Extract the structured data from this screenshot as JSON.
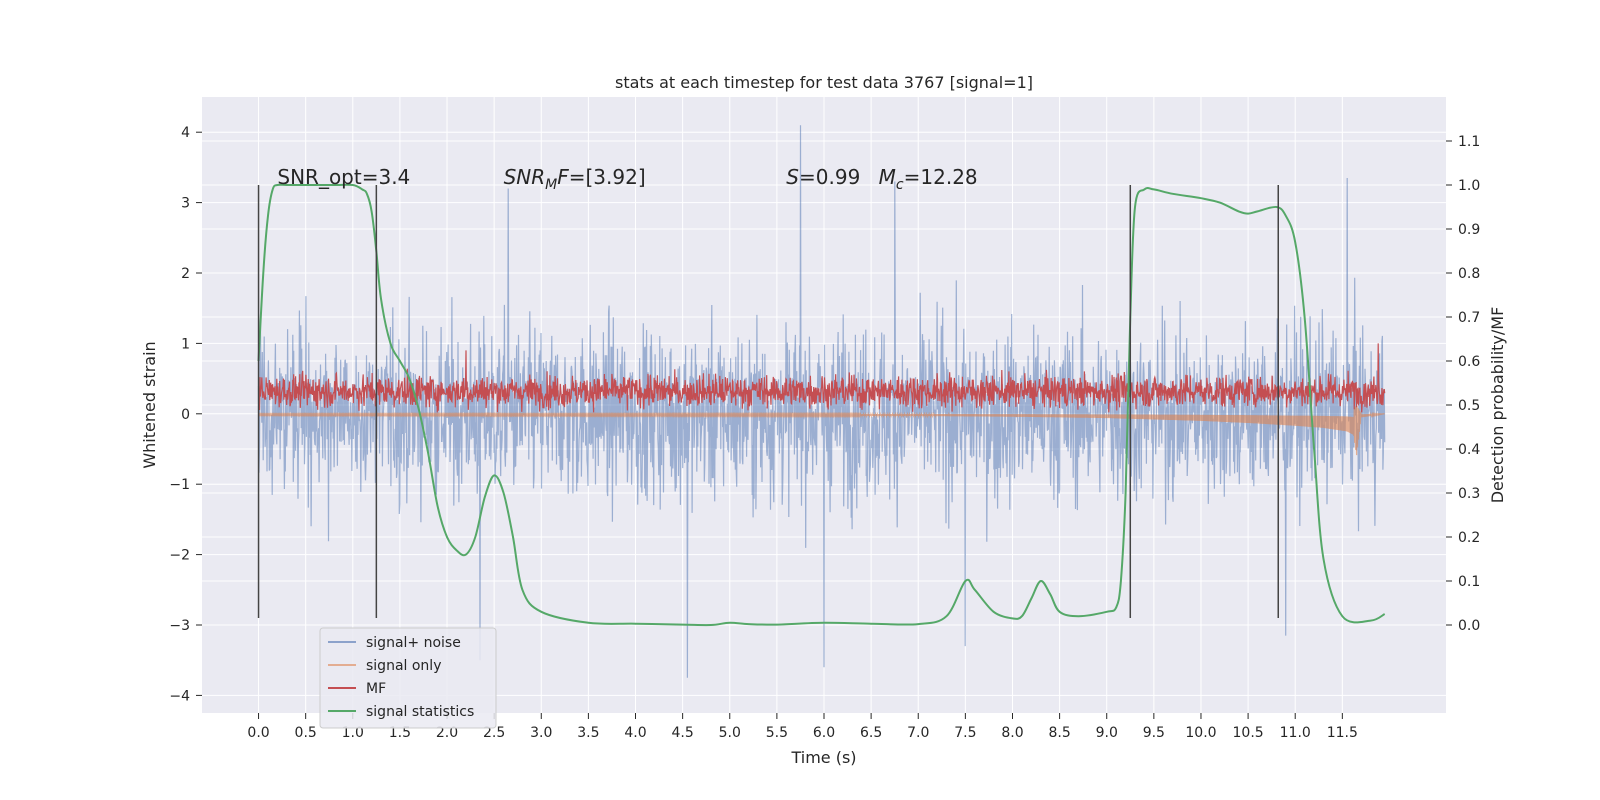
{
  "chart_data": {
    "type": "line",
    "title": "stats at each timestep for test data 3767 [signal=1]",
    "xlabel": "Time (s)",
    "ylabel": "Whitened strain",
    "y2label": "Detection probability/MF",
    "xlim": [
      -0.6,
      12.6
    ],
    "ylim": [
      -4.25,
      4.5
    ],
    "y2lim": [
      -0.2,
      1.2
    ],
    "x_ticks": [
      0.0,
      0.5,
      1.0,
      1.5,
      2.0,
      2.5,
      3.0,
      3.5,
      4.0,
      4.5,
      5.0,
      5.5,
      6.0,
      6.5,
      7.0,
      7.5,
      8.0,
      8.5,
      9.0,
      9.5,
      10.0,
      10.5,
      11.0,
      11.5
    ],
    "x_tick_labels": [
      "0.0",
      "0.5",
      "1.0",
      "1.5",
      "2.0",
      "2.5",
      "3.0",
      "3.5",
      "4.0",
      "4.5",
      "5.0",
      "5.5",
      "6.0",
      "6.5",
      "7.0",
      "7.5",
      "8.0",
      "8.5",
      "9.0",
      "9.5",
      "10.0",
      "10.5",
      "11.0",
      "11.5"
    ],
    "y_ticks": [
      4,
      3,
      2,
      1,
      0,
      -1,
      -2,
      -3,
      -4
    ],
    "y_tick_labels": [
      "4",
      "3",
      "2",
      "1",
      "0",
      "−1",
      "−2",
      "−3",
      "−4"
    ],
    "y2_ticks": [
      1.1,
      1.0,
      0.9,
      0.8,
      0.7,
      0.6,
      0.5,
      0.4,
      0.3,
      0.2,
      0.1,
      0.0
    ],
    "y2_tick_labels": [
      "1.1",
      "1.0",
      "0.9",
      "0.8",
      "0.7",
      "0.6",
      "0.5",
      "0.4",
      "0.3",
      "0.2",
      "0.1",
      "0.0"
    ],
    "grid": true,
    "legend_position": "bottom-left",
    "annotations": [
      {
        "text": "SNR_opt=3.4",
        "x": 0.2
      },
      {
        "text": "SNR_MF=[3.92]",
        "x": 2.6
      },
      {
        "text": "S=0.99   M_c=12.28",
        "x": 5.6
      }
    ],
    "vertical_lines": {
      "x": [
        0.0,
        1.25,
        9.25,
        10.82
      ],
      "y_range": [
        -2.9,
        3.25
      ]
    },
    "series": [
      {
        "name": "signal+ noise",
        "color": "#4c72b0",
        "axis": "left",
        "style": "dense noise trace, 0 to 11.95 s",
        "x_range": [
          0.0,
          11.95
        ],
        "typical_range": [
          -2.0,
          2.0
        ],
        "peaks": [
          {
            "x": 5.75,
            "y": 4.1
          },
          {
            "x": 11.55,
            "y": 3.35
          },
          {
            "x": 6.75,
            "y": 3.3
          },
          {
            "x": 2.65,
            "y": 3.2
          },
          {
            "x": 4.55,
            "y": -3.75
          },
          {
            "x": 6.0,
            "y": -3.6
          },
          {
            "x": 7.5,
            "y": -3.3
          },
          {
            "x": 2.35,
            "y": -3.5
          },
          {
            "x": 10.9,
            "y": -3.15
          }
        ]
      },
      {
        "name": "signal only",
        "color": "#dd8452",
        "axis": "left",
        "x": [
          0.0,
          7.0,
          8.0,
          9.0,
          10.0,
          10.5,
          11.0,
          11.3,
          11.55,
          11.62,
          11.65,
          11.7,
          11.95
        ],
        "envelope": [
          0.02,
          0.03,
          0.04,
          0.06,
          0.1,
          0.13,
          0.17,
          0.2,
          0.25,
          0.3,
          0.6,
          0.05,
          0.0
        ]
      },
      {
        "name": "MF",
        "color": "#c44e52",
        "axis": "left",
        "style": "noise trace",
        "x_range": [
          0.0,
          11.95
        ],
        "typical_range": [
          0.0,
          0.75
        ],
        "peaks": [
          {
            "x": 11.88,
            "y": 1.0
          },
          {
            "x": 2.2,
            "y": 0.9
          }
        ]
      },
      {
        "name": "signal statistics",
        "color": "#55a868",
        "axis": "right",
        "x": [
          0.0,
          0.05,
          0.1,
          0.15,
          0.2,
          0.3,
          0.5,
          0.8,
          1.0,
          1.1,
          1.15,
          1.2,
          1.25,
          1.3,
          1.4,
          1.5,
          1.6,
          1.7,
          1.8,
          1.9,
          2.0,
          2.1,
          2.2,
          2.3,
          2.4,
          2.5,
          2.6,
          2.7,
          2.8,
          3.0,
          3.5,
          4.0,
          4.5,
          4.8,
          5.0,
          5.2,
          5.5,
          6.0,
          6.5,
          7.0,
          7.3,
          7.5,
          7.6,
          7.8,
          8.0,
          8.1,
          8.2,
          8.3,
          8.4,
          8.5,
          8.7,
          9.0,
          9.1,
          9.15,
          9.2,
          9.25,
          9.3,
          9.4,
          9.5,
          9.7,
          10.0,
          10.2,
          10.4,
          10.5,
          10.6,
          10.8,
          10.9,
          11.0,
          11.1,
          11.2,
          11.3,
          11.5,
          11.8,
          11.95
        ],
        "y": [
          0.6,
          0.8,
          0.93,
          0.99,
          1.0,
          1.0,
          1.0,
          1.0,
          1.0,
          0.99,
          0.98,
          0.94,
          0.85,
          0.74,
          0.64,
          0.6,
          0.56,
          0.49,
          0.39,
          0.27,
          0.2,
          0.17,
          0.16,
          0.2,
          0.29,
          0.34,
          0.3,
          0.2,
          0.08,
          0.03,
          0.005,
          0.003,
          0.001,
          0.0,
          0.005,
          0.002,
          0.001,
          0.005,
          0.003,
          0.002,
          0.02,
          0.1,
          0.08,
          0.03,
          0.015,
          0.02,
          0.06,
          0.1,
          0.07,
          0.03,
          0.02,
          0.03,
          0.04,
          0.1,
          0.3,
          0.7,
          0.95,
          0.99,
          0.99,
          0.98,
          0.97,
          0.96,
          0.94,
          0.935,
          0.94,
          0.95,
          0.93,
          0.87,
          0.7,
          0.4,
          0.15,
          0.02,
          0.01,
          0.025
        ]
      }
    ]
  }
}
